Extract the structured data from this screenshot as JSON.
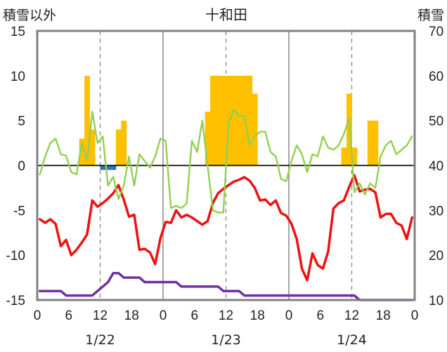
{
  "chart_data": {
    "type": "bar+line",
    "title": "十和田",
    "y_left_label": "積雪以外",
    "y_right_label": "積雪",
    "y_left_range": [
      -15,
      15
    ],
    "y_left_ticks": [
      -15,
      -10,
      -5,
      0,
      5,
      10,
      15
    ],
    "y_right_range": [
      10,
      70
    ],
    "y_right_ticks": [
      10,
      20,
      30,
      40,
      50,
      60,
      70
    ],
    "x_range_hours": [
      0,
      72
    ],
    "x_tick_labels": [
      "0",
      "6",
      "12",
      "18",
      "0",
      "6",
      "12",
      "18",
      "0",
      "6",
      "12",
      "18",
      "0"
    ],
    "x_tick_hours": [
      0,
      6,
      12,
      18,
      24,
      30,
      36,
      42,
      48,
      54,
      60,
      66,
      72
    ],
    "day_labels": [
      "1/22",
      "1/23",
      "1/24"
    ],
    "day_label_hours": [
      12,
      36,
      60
    ],
    "day_separators_hours": [
      24,
      48
    ],
    "grid_dashed_hours": [
      12,
      36,
      60
    ],
    "colors": {
      "precip_bar": "#FFC000",
      "negative_bar": "#2E75B6",
      "temperature": "#EE1111",
      "snow_depth": "#92D050",
      "wind": "#7030A0",
      "axis": "#808080",
      "grid": "#808080"
    },
    "precip_bars": [
      {
        "hour": 8,
        "value": 3
      },
      {
        "hour": 9,
        "value": 10
      },
      {
        "hour": 10,
        "value": 4
      },
      {
        "hour": 15,
        "value": 4
      },
      {
        "hour": 16,
        "value": 5
      },
      {
        "hour": 32,
        "value": 6
      },
      {
        "hour": 33,
        "value": 10
      },
      {
        "hour": 34,
        "value": 10
      },
      {
        "hour": 35,
        "value": 10
      },
      {
        "hour": 36,
        "value": 10
      },
      {
        "hour": 37,
        "value": 10
      },
      {
        "hour": 38,
        "value": 10
      },
      {
        "hour": 39,
        "value": 10
      },
      {
        "hour": 40,
        "value": 10
      },
      {
        "hour": 41,
        "value": 8
      },
      {
        "hour": 58,
        "value": 2
      },
      {
        "hour": 59,
        "value": 8
      },
      {
        "hour": 60,
        "value": 2
      },
      {
        "hour": 63,
        "value": 5
      },
      {
        "hour": 64,
        "value": 5
      }
    ],
    "negative_bars": [
      {
        "hour": 12,
        "value": -0.5
      },
      {
        "hour": 13,
        "value": -0.5
      },
      {
        "hour": 14,
        "value": -0.5
      }
    ],
    "series": [
      {
        "key": "temperature",
        "axis": "left",
        "x": [
          0,
          1,
          2,
          3,
          4,
          5,
          6,
          7,
          8,
          9,
          10,
          11,
          12,
          13,
          14,
          15,
          16,
          17,
          18,
          19,
          20,
          21,
          22,
          23,
          24,
          25,
          26,
          27,
          28,
          29,
          30,
          31,
          32,
          33,
          34,
          35,
          36,
          37,
          38,
          39,
          40,
          41,
          42,
          43,
          44,
          45,
          46,
          47,
          48,
          49,
          50,
          51,
          52,
          53,
          54,
          55,
          56,
          57,
          58,
          59,
          60,
          61,
          62,
          63,
          64,
          65,
          66,
          67,
          68,
          69,
          70,
          71
        ],
        "y": [
          -6,
          -6.4,
          -6,
          -6.5,
          -9,
          -8.3,
          -10,
          -9.4,
          -8.6,
          -7.7,
          -3.9,
          -4.6,
          -4.2,
          -3.7,
          -3.1,
          -2.2,
          -3.8,
          -5.7,
          -5.5,
          -9.4,
          -9.3,
          -9.7,
          -11,
          -8.1,
          -6.3,
          -6.4,
          -5,
          -5.8,
          -5.5,
          -5.8,
          -6.2,
          -6.6,
          -6.2,
          -4.2,
          -3.1,
          -2.6,
          -2.2,
          -1.8,
          -1.6,
          -1.3,
          -1.7,
          -2.5,
          -3.9,
          -3.8,
          -4.4,
          -3.9,
          -5.3,
          -5.6,
          -6.5,
          -8.2,
          -11.5,
          -12.8,
          -9.8,
          -11.1,
          -11.5,
          -9.6,
          -4.8,
          -4.2,
          -3.9,
          -2.4,
          -1.1,
          -2.9,
          -2.7,
          -2.6,
          -3,
          -5.8,
          -5.4,
          -5.4,
          -6.4,
          -6.7,
          -8.2,
          -5.8
        ]
      },
      {
        "key": "snow_depth",
        "axis": "right",
        "x": [
          0,
          1,
          2,
          3,
          4,
          5,
          6,
          7,
          8,
          9,
          10,
          11,
          12,
          13,
          14,
          15,
          16,
          17,
          18,
          19,
          20,
          21,
          22,
          23,
          24,
          25,
          26,
          27,
          28,
          29,
          30,
          31,
          32,
          33,
          34,
          35,
          36,
          37,
          38,
          39,
          40,
          41,
          42,
          43,
          44,
          45,
          46,
          47,
          48,
          49,
          50,
          51,
          52,
          53,
          54,
          55,
          56,
          57,
          58,
          59,
          60,
          61,
          62,
          63,
          64,
          65,
          66,
          67,
          68,
          69,
          70,
          71
        ],
        "y": [
          38,
          42,
          45,
          46,
          42.5,
          42.2,
          38.5,
          38,
          45,
          41,
          52,
          45,
          46.5,
          35.5,
          37.5,
          32.5,
          35.5,
          42,
          35.5,
          42.5,
          41,
          39.5,
          42,
          46,
          45.5,
          30.5,
          31,
          30.5,
          31.5,
          45.5,
          43,
          50,
          40,
          30,
          29.5,
          29.5,
          49.5,
          52.5,
          51,
          51,
          44.5,
          46.5,
          47.5,
          47.5,
          43,
          42,
          37,
          36.5,
          41,
          44.5,
          42.5,
          38.5,
          42.5,
          42,
          46.5,
          44,
          43.5,
          44.5,
          47,
          50.5,
          34,
          36,
          33.5,
          36,
          35,
          42,
          44.5,
          45.5,
          42.5,
          43.5,
          44.5,
          46.5
        ]
      },
      {
        "key": "wind",
        "axis": "left",
        "x": [
          0,
          1,
          2,
          3,
          4,
          5,
          6,
          7,
          8,
          9,
          10,
          11,
          12,
          13,
          14,
          15,
          16,
          17,
          18,
          19,
          20,
          21,
          22,
          23,
          24,
          25,
          26,
          27,
          28,
          29,
          30,
          31,
          32,
          33,
          34,
          35,
          36,
          37,
          38,
          39,
          40,
          41,
          42,
          43,
          44,
          45,
          46,
          47,
          48,
          49,
          50,
          51,
          52,
          53,
          54,
          55,
          56,
          57,
          58,
          59,
          60,
          61,
          62,
          63,
          64,
          65,
          66,
          67,
          68,
          69,
          70,
          71
        ],
        "y": [
          -14,
          -14,
          -14,
          -14,
          -14,
          -14.5,
          -14.5,
          -14.5,
          -14.5,
          -14.5,
          -14.5,
          -14,
          -13.5,
          -13,
          -12,
          -12,
          -12.5,
          -12.5,
          -12.5,
          -12.5,
          -13,
          -13,
          -13,
          -13,
          -13,
          -13,
          -13,
          -13.5,
          -13.5,
          -13.5,
          -13.5,
          -13.5,
          -13.5,
          -13.5,
          -13.5,
          -14,
          -14,
          -14,
          -14,
          -14.5,
          -14.5,
          -14.5,
          -14.5,
          -14.5,
          -14.5,
          -14.5,
          -14.5,
          -14.5,
          -14.5,
          -14.5,
          -14.5,
          -14.5,
          -14.5,
          -14.5,
          -14.5,
          -14.5,
          -14.5,
          -14.5,
          -14.5,
          -14.5,
          -14.5,
          -15,
          -15,
          -15,
          -15,
          -15,
          -15,
          -15,
          -15,
          -15,
          -15,
          -15
        ]
      }
    ]
  }
}
